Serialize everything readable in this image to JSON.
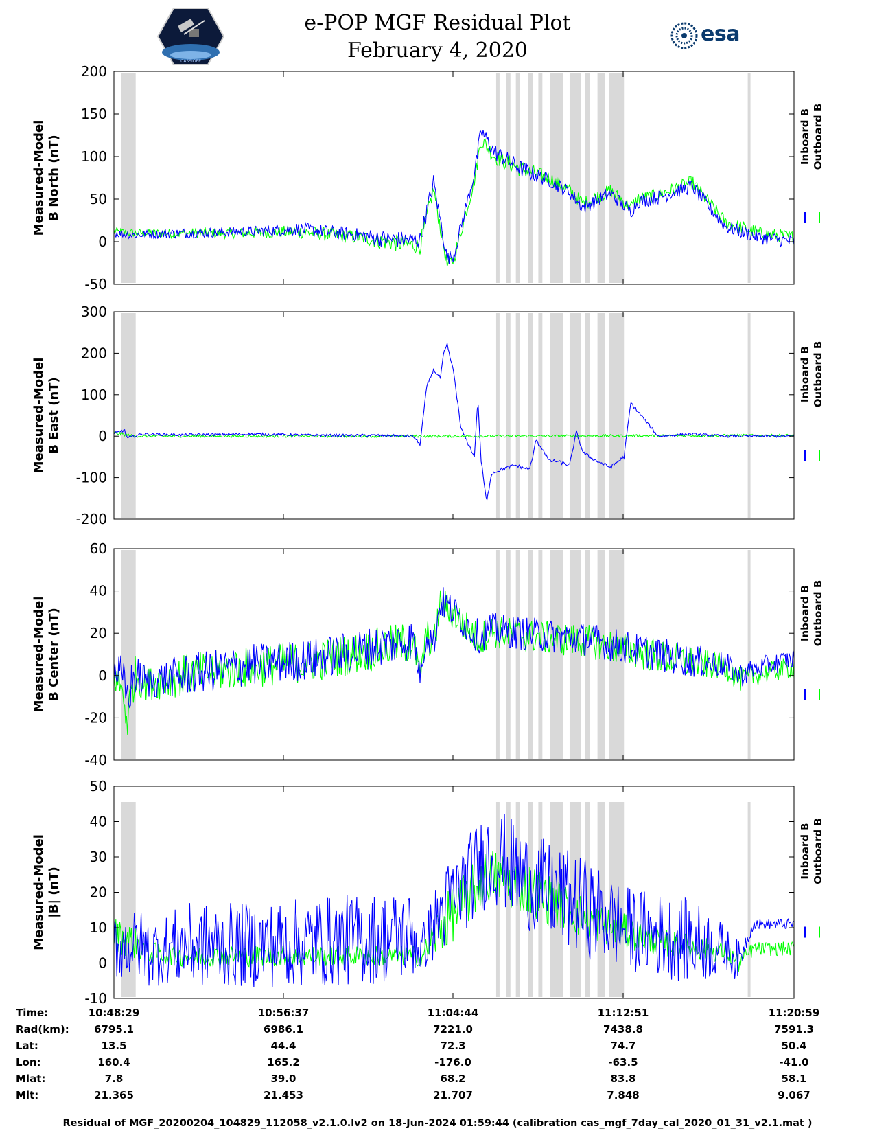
{
  "header": {
    "title": "e-POP MGF Residual Plot",
    "date": "February 4, 2020",
    "left_logo_text": "CASSIOPE",
    "right_logo_text": "esa"
  },
  "colors": {
    "inboard": "#0000ff",
    "outboard": "#00ff00",
    "gap": "#d9d9d9"
  },
  "legend": {
    "inboard": "Inboard B",
    "outboard": "Outboard B"
  },
  "gap_spans_fraction": [
    [
      0.011,
      0.032
    ],
    [
      0.562,
      0.567
    ],
    [
      0.577,
      0.583
    ],
    [
      0.591,
      0.597
    ],
    [
      0.609,
      0.616
    ],
    [
      0.624,
      0.63
    ],
    [
      0.641,
      0.66
    ],
    [
      0.67,
      0.687
    ],
    [
      0.693,
      0.7
    ],
    [
      0.711,
      0.722
    ],
    [
      0.728,
      0.75
    ],
    [
      0.932,
      0.936
    ]
  ],
  "chart_data": [
    {
      "type": "line",
      "ylabel_line1": "Measured-Model",
      "ylabel_line2": "B North (nT)",
      "ylim": [
        -50,
        200
      ],
      "yticks": [
        -50,
        0,
        50,
        100,
        150,
        200
      ],
      "series": [
        {
          "name": "Inboard B",
          "x": [
            0,
            0.03,
            0.1,
            0.2,
            0.27,
            0.36,
            0.4,
            0.45,
            0.47,
            0.49,
            0.5,
            0.53,
            0.54,
            0.56,
            0.6,
            0.64,
            0.67,
            0.69,
            0.73,
            0.76,
            0.77,
            0.8,
            0.85,
            0.9,
            0.95,
            1
          ],
          "y": [
            10,
            8,
            10,
            12,
            15,
            8,
            3,
            2,
            70,
            -20,
            -15,
            80,
            130,
            105,
            85,
            72,
            58,
            40,
            57,
            35,
            47,
            52,
            65,
            17,
            5,
            0
          ],
          "noise": [
            5,
            5,
            6,
            6,
            8,
            8,
            10,
            10,
            10,
            8,
            8,
            8,
            10,
            10,
            10,
            8,
            8,
            8,
            8,
            8,
            8,
            8,
            8,
            8,
            8,
            8
          ]
        },
        {
          "name": "Outboard B",
          "x": [
            0,
            0.03,
            0.1,
            0.2,
            0.27,
            0.36,
            0.4,
            0.45,
            0.47,
            0.49,
            0.5,
            0.53,
            0.54,
            0.56,
            0.6,
            0.64,
            0.67,
            0.69,
            0.73,
            0.76,
            0.77,
            0.8,
            0.85,
            0.9,
            0.95,
            1
          ],
          "y": [
            12,
            10,
            10,
            10,
            12,
            5,
            0,
            -5,
            62,
            -28,
            -20,
            72,
            120,
            100,
            85,
            75,
            60,
            45,
            60,
            40,
            50,
            55,
            70,
            22,
            10,
            5
          ],
          "noise": [
            5,
            5,
            6,
            6,
            8,
            8,
            10,
            10,
            10,
            8,
            8,
            8,
            10,
            10,
            10,
            8,
            8,
            8,
            8,
            8,
            8,
            8,
            8,
            8,
            8,
            8
          ]
        }
      ]
    },
    {
      "type": "line",
      "ylabel_line1": "Measured-Model",
      "ylabel_line2": "B East (nT)",
      "ylim": [
        -200,
        300
      ],
      "yticks": [
        -200,
        -100,
        0,
        100,
        200,
        300
      ],
      "series": [
        {
          "name": "Inboard B",
          "x": [
            0,
            0.015,
            0.02,
            0.03,
            0.04,
            0.1,
            0.2,
            0.3,
            0.39,
            0.44,
            0.45,
            0.46,
            0.47,
            0.48,
            0.485,
            0.49,
            0.5,
            0.51,
            0.53,
            0.535,
            0.54,
            0.548,
            0.555,
            0.57,
            0.59,
            0.61,
            0.615,
            0.62,
            0.63,
            0.64,
            0.65,
            0.66,
            0.67,
            0.68,
            0.69,
            0.71,
            0.73,
            0.75,
            0.76,
            0.78,
            0.79,
            0.8,
            0.85,
            0.9,
            0.95,
            1
          ],
          "y": [
            5,
            15,
            -5,
            0,
            5,
            3,
            5,
            2,
            2,
            0,
            -20,
            120,
            160,
            140,
            200,
            220,
            150,
            20,
            -50,
            90,
            -60,
            -160,
            -90,
            -80,
            -70,
            -80,
            -60,
            -10,
            -30,
            -60,
            -60,
            -65,
            -70,
            10,
            -40,
            -60,
            -75,
            -50,
            80,
            40,
            20,
            0,
            5,
            0,
            0,
            0
          ],
          "noise": [
            4,
            4,
            4,
            3,
            3,
            3,
            3,
            3,
            3,
            3,
            3,
            3,
            4,
            4,
            4,
            4,
            4,
            4,
            4,
            4,
            4,
            4,
            4,
            4,
            4,
            4,
            4,
            4,
            4,
            4,
            4,
            4,
            4,
            4,
            4,
            4,
            4,
            4,
            4,
            4,
            4,
            3,
            3,
            3,
            3,
            3
          ]
        },
        {
          "name": "Outboard B",
          "x": [
            0,
            0.03,
            0.5,
            1
          ],
          "y": [
            8,
            0,
            0,
            2
          ],
          "noise": [
            4,
            3,
            3,
            3
          ]
        }
      ]
    },
    {
      "type": "line",
      "ylabel_line1": "Measured-Model",
      "ylabel_line2": "B Center (nT)",
      "ylim": [
        -40,
        60
      ],
      "yticks": [
        -40,
        -20,
        0,
        20,
        40,
        60
      ],
      "series": [
        {
          "name": "Inboard B",
          "x": [
            0,
            0.01,
            0.02,
            0.03,
            0.05,
            0.1,
            0.2,
            0.3,
            0.39,
            0.44,
            0.45,
            0.46,
            0.47,
            0.48,
            0.49,
            0.5,
            0.53,
            0.54,
            0.55,
            0.6,
            0.7,
            0.8,
            0.85,
            0.9,
            0.92,
            0.94,
            1
          ],
          "y": [
            3,
            0,
            -10,
            0,
            -3,
            0,
            5,
            8,
            14,
            17,
            0,
            20,
            15,
            35,
            33,
            30,
            20,
            18,
            22,
            20,
            17,
            10,
            7,
            5,
            0,
            3,
            8
          ],
          "noise": [
            8,
            10,
            12,
            10,
            8,
            10,
            10,
            10,
            10,
            10,
            5,
            8,
            8,
            8,
            8,
            8,
            8,
            8,
            8,
            8,
            8,
            8,
            8,
            6,
            6,
            5,
            5
          ]
        },
        {
          "name": "Outboard B",
          "x": [
            0,
            0.01,
            0.02,
            0.03,
            0.05,
            0.1,
            0.2,
            0.3,
            0.39,
            0.44,
            0.45,
            0.46,
            0.47,
            0.48,
            0.49,
            0.5,
            0.53,
            0.54,
            0.55,
            0.6,
            0.7,
            0.8,
            0.85,
            0.9,
            0.92,
            0.94,
            1
          ],
          "y": [
            0,
            -5,
            -20,
            0,
            -4,
            0,
            4,
            7,
            13,
            16,
            0,
            19,
            14,
            34,
            32,
            29,
            19,
            17,
            21,
            19,
            16,
            9,
            6,
            4,
            -2,
            0,
            4
          ],
          "noise": [
            8,
            10,
            12,
            10,
            8,
            10,
            10,
            10,
            10,
            10,
            5,
            8,
            8,
            8,
            8,
            8,
            8,
            8,
            8,
            8,
            8,
            8,
            8,
            6,
            6,
            5,
            5
          ]
        }
      ]
    },
    {
      "type": "line",
      "ylabel_line1": "Measured-Model",
      "ylabel_line2": "|B| (nT)",
      "ylim": [
        -10,
        50
      ],
      "yticks": [
        -10,
        0,
        10,
        20,
        30,
        40,
        50
      ],
      "series": [
        {
          "name": "Inboard B",
          "x": [
            0,
            0.04,
            0.05,
            0.08,
            0.1,
            0.2,
            0.3,
            0.39,
            0.44,
            0.45,
            0.48,
            0.55,
            0.56,
            0.58,
            0.6,
            0.7,
            0.75,
            0.8,
            0.85,
            0.88,
            0.9,
            0.92,
            0.925,
            0.94,
            1
          ],
          "y": [
            5,
            5,
            3,
            4,
            5,
            5,
            6,
            7,
            8,
            3,
            14,
            30,
            30,
            28,
            24,
            15,
            10,
            8,
            6,
            5,
            4,
            0,
            4,
            11,
            11
          ],
          "noise": [
            10,
            10,
            10,
            10,
            12,
            12,
            13,
            13,
            13,
            6,
            12,
            14,
            14,
            14,
            14,
            14,
            12,
            12,
            12,
            10,
            6,
            6,
            3,
            1.5,
            1.5
          ]
        },
        {
          "name": "Outboard B",
          "x": [
            0,
            0.03,
            0.05,
            0.1,
            0.2,
            0.3,
            0.39,
            0.44,
            0.45,
            0.48,
            0.55,
            0.6,
            0.7,
            0.8,
            0.9,
            0.92,
            0.94,
            1
          ],
          "y": [
            8,
            6,
            3,
            2,
            2,
            2,
            2,
            2,
            1,
            10,
            25,
            22,
            12,
            6,
            3,
            0,
            4,
            4
          ],
          "noise": [
            5,
            5,
            3,
            3,
            3,
            3,
            3,
            3,
            2,
            8,
            8,
            8,
            6,
            4,
            3,
            3,
            2,
            2
          ]
        }
      ]
    }
  ],
  "time_table": {
    "labels": [
      "Time:",
      "Rad(km):",
      "Lat:",
      "Lon:",
      "Mlat:",
      "Mlt:"
    ],
    "columns": [
      [
        "10:48:29",
        "6795.1",
        "13.5",
        "160.4",
        "7.8",
        "21.365"
      ],
      [
        "10:56:37",
        "6986.1",
        "44.4",
        "165.2",
        "39.0",
        "21.453"
      ],
      [
        "11:04:44",
        "7221.0",
        "72.3",
        "-176.0",
        "68.2",
        "21.707"
      ],
      [
        "11:12:51",
        "7438.8",
        "74.7",
        "-63.5",
        "83.8",
        "7.848"
      ],
      [
        "11:20:59",
        "7591.3",
        "50.4",
        "-41.0",
        "58.1",
        "9.067"
      ]
    ]
  },
  "footer": "Residual of MGF_20200204_104829_112058_v2.1.0.lv2 on 18-Jun-2024 01:59:44 (calibration cas_mgf_7day_cal_2020_01_31_v2.1.mat )"
}
